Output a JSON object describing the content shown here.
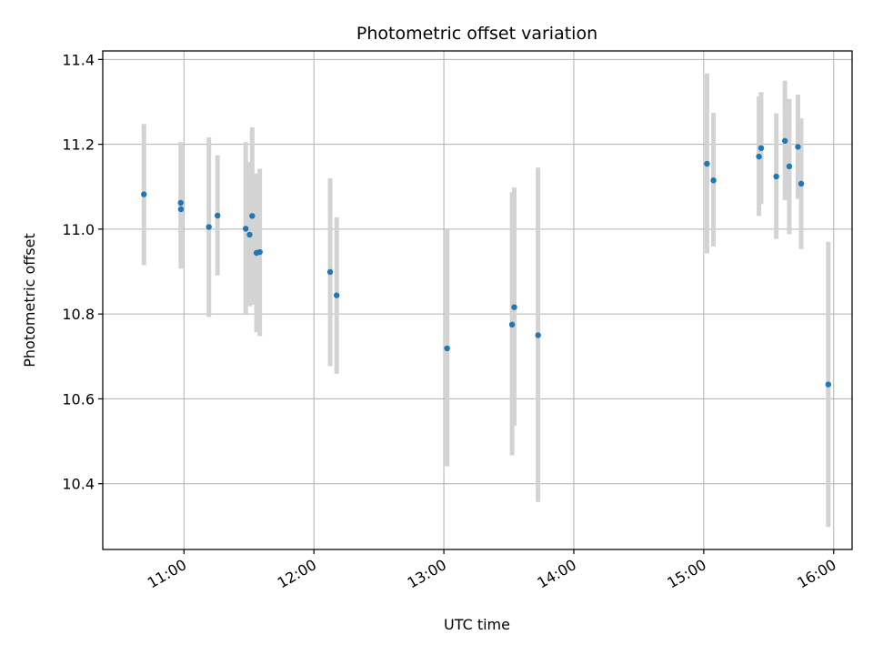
{
  "chart_data": {
    "type": "scatter",
    "title": "Photometric offset variation",
    "xlabel": "UTC time",
    "ylabel": "Photometric offset",
    "grid": true,
    "legend": "none",
    "x_unit": "minutes since 00:00 UTC",
    "xlim": [
      622.5,
      968.5
    ],
    "ylim": [
      10.245,
      11.42
    ],
    "x_ticks": [
      {
        "value": 660,
        "label": "11:00"
      },
      {
        "value": 720,
        "label": "12:00"
      },
      {
        "value": 780,
        "label": "13:00"
      },
      {
        "value": 840,
        "label": "14:00"
      },
      {
        "value": 900,
        "label": "15:00"
      },
      {
        "value": 960,
        "label": "16:00"
      }
    ],
    "y_ticks": [
      {
        "value": 10.4,
        "label": "10.4"
      },
      {
        "value": 10.6,
        "label": "10.6"
      },
      {
        "value": 10.8,
        "label": "10.8"
      },
      {
        "value": 11.0,
        "label": "11.0"
      },
      {
        "value": 11.2,
        "label": "11.2"
      },
      {
        "value": 11.4,
        "label": "11.4"
      }
    ],
    "colors": {
      "marker": "#1f77b4",
      "errorbar": "#d3d3d3",
      "grid": "#b0b0b0",
      "axis": "#000000"
    },
    "series": [
      {
        "name": "offset",
        "points": [
          {
            "t": 641.5,
            "y": 11.082,
            "lo": 10.915,
            "hi": 11.248
          },
          {
            "t": 658.5,
            "y": 11.062,
            "lo": 10.922,
            "hi": 11.205
          },
          {
            "t": 658.6,
            "y": 11.047,
            "lo": 10.907,
            "hi": 11.193
          },
          {
            "t": 671.5,
            "y": 11.005,
            "lo": 10.793,
            "hi": 11.216
          },
          {
            "t": 675.5,
            "y": 11.032,
            "lo": 10.891,
            "hi": 11.174
          },
          {
            "t": 688.5,
            "y": 11.001,
            "lo": 10.8,
            "hi": 11.205
          },
          {
            "t": 690.3,
            "y": 10.987,
            "lo": 10.818,
            "hi": 11.158
          },
          {
            "t": 691.5,
            "y": 11.031,
            "lo": 10.822,
            "hi": 11.24
          },
          {
            "t": 693.5,
            "y": 10.944,
            "lo": 10.757,
            "hi": 11.131
          },
          {
            "t": 695.0,
            "y": 10.946,
            "lo": 10.748,
            "hi": 11.142
          },
          {
            "t": 727.5,
            "y": 10.899,
            "lo": 10.677,
            "hi": 11.12
          },
          {
            "t": 730.5,
            "y": 10.844,
            "lo": 10.659,
            "hi": 11.028
          },
          {
            "t": 781.5,
            "y": 10.719,
            "lo": 10.441,
            "hi": 11.0
          },
          {
            "t": 811.5,
            "y": 10.775,
            "lo": 10.467,
            "hi": 11.087
          },
          {
            "t": 812.5,
            "y": 10.816,
            "lo": 10.536,
            "hi": 11.098
          },
          {
            "t": 823.5,
            "y": 10.75,
            "lo": 10.357,
            "hi": 11.145
          },
          {
            "t": 901.5,
            "y": 11.154,
            "lo": 10.943,
            "hi": 11.367
          },
          {
            "t": 904.5,
            "y": 11.115,
            "lo": 10.959,
            "hi": 11.274
          },
          {
            "t": 925.5,
            "y": 11.171,
            "lo": 11.031,
            "hi": 11.313
          },
          {
            "t": 926.5,
            "y": 11.191,
            "lo": 11.059,
            "hi": 11.323
          },
          {
            "t": 933.5,
            "y": 11.124,
            "lo": 10.977,
            "hi": 11.273
          },
          {
            "t": 937.5,
            "y": 11.208,
            "lo": 11.068,
            "hi": 11.35
          },
          {
            "t": 939.5,
            "y": 11.148,
            "lo": 10.988,
            "hi": 11.307
          },
          {
            "t": 943.5,
            "y": 11.194,
            "lo": 11.071,
            "hi": 11.317
          },
          {
            "t": 945.0,
            "y": 11.107,
            "lo": 10.953,
            "hi": 11.261
          },
          {
            "t": 957.5,
            "y": 10.634,
            "lo": 10.298,
            "hi": 10.97
          }
        ]
      }
    ]
  }
}
